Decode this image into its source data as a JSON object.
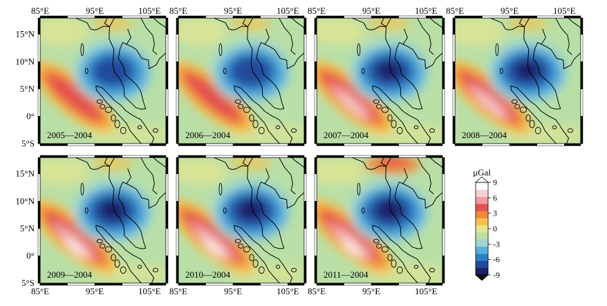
{
  "figure": {
    "axes": {
      "lon_ticks": [
        "85°E",
        "95°E",
        "105°E"
      ],
      "lat_ticks": [
        "15°N",
        "10°N",
        "5°N",
        "0°",
        "5°S"
      ]
    },
    "panels": [
      {
        "label": "2005—2004",
        "amp": 0.78
      },
      {
        "label": "2006—2004",
        "amp": 0.84
      },
      {
        "label": "2007—2004",
        "amp": 0.93
      },
      {
        "label": "2008—2004",
        "amp": 0.97
      },
      {
        "label": "2009—2004",
        "amp": 0.98
      },
      {
        "label": "2010—2004",
        "amp": 1.0
      },
      {
        "label": "2011—2004",
        "amp": 1.0
      }
    ],
    "colorbar": {
      "unit": "μGal",
      "ticks": [
        "9",
        "6",
        "3",
        "0",
        "-3",
        "-6",
        "-9"
      ],
      "range": [
        -9,
        9
      ],
      "colors": [
        "#1b1f63",
        "#234a9a",
        "#2f7fc4",
        "#57b0de",
        "#9fd6cf",
        "#b9dfa7",
        "#e6e58e",
        "#f6c14a",
        "#ef8a3a",
        "#e44f4d",
        "#f19a9f",
        "#f7d2d4",
        "#ffffff"
      ]
    }
  }
}
